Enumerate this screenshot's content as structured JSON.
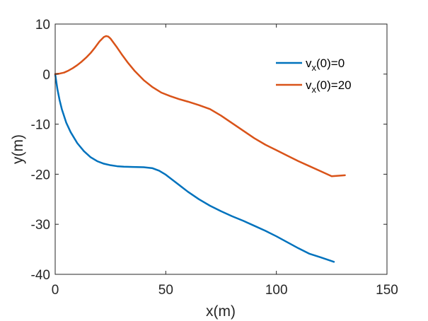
{
  "chart_data": {
    "type": "line",
    "title": "",
    "xlabel": "x(m)",
    "ylabel": "y(m)",
    "xlim": [
      0,
      150
    ],
    "ylim": [
      -40,
      10
    ],
    "xticks": [
      0,
      50,
      100,
      150
    ],
    "yticks": [
      -40,
      -30,
      -20,
      -10,
      0,
      10
    ],
    "grid": false,
    "legend_position": "top-right",
    "series": [
      {
        "name": "v_x(0)=0",
        "legend_main": "v",
        "legend_sub": "x",
        "legend_rest": "(0)=0",
        "color": "#0072BD",
        "x": [
          0,
          1,
          2,
          3,
          5,
          7,
          10,
          13,
          16,
          19,
          22,
          25,
          28,
          31,
          35,
          40,
          44,
          47,
          50,
          55,
          60,
          65,
          70,
          75,
          80,
          85,
          90,
          95,
          100,
          105,
          110,
          115,
          120,
          126
        ],
        "y": [
          0,
          -3,
          -5.2,
          -7,
          -9.7,
          -11.6,
          -13.8,
          -15.4,
          -16.6,
          -17.4,
          -17.9,
          -18.2,
          -18.4,
          -18.5,
          -18.55,
          -18.6,
          -18.8,
          -19.3,
          -20.1,
          -21.8,
          -23.5,
          -25,
          -26.3,
          -27.4,
          -28.4,
          -29.3,
          -30.3,
          -31.3,
          -32.4,
          -33.6,
          -34.8,
          -35.9,
          -36.6,
          -37.5
        ]
      },
      {
        "name": "v_x(0)=20",
        "legend_main": "v",
        "legend_sub": "x",
        "legend_rest": "(0)=20",
        "color": "#D95319",
        "x": [
          0,
          2,
          4,
          6,
          8,
          10,
          12,
          14,
          16,
          18,
          20,
          22,
          23,
          24,
          25,
          26,
          28,
          30,
          33,
          36,
          40,
          44,
          48,
          52,
          56,
          60,
          65,
          70,
          75,
          80,
          85,
          90,
          95,
          100,
          105,
          110,
          115,
          120,
          125,
          131
        ],
        "y": [
          0,
          0.1,
          0.3,
          0.7,
          1.2,
          1.8,
          2.5,
          3.3,
          4.2,
          5.3,
          6.5,
          7.4,
          7.6,
          7.5,
          7.1,
          6.5,
          5.3,
          4,
          2.2,
          0.6,
          -1.2,
          -2.6,
          -3.7,
          -4.4,
          -5,
          -5.5,
          -6.2,
          -7,
          -8.3,
          -9.8,
          -11.3,
          -12.8,
          -14.1,
          -15.2,
          -16.3,
          -17.4,
          -18.4,
          -19.4,
          -20.4,
          -20.2
        ]
      }
    ]
  }
}
